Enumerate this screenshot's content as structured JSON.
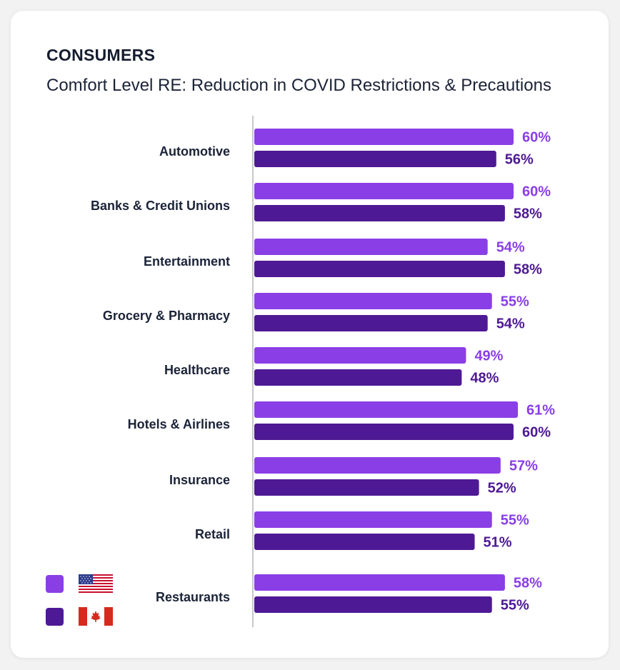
{
  "header": {
    "kicker": "CONSUMERS",
    "subtitle": "Comfort Level RE: Reduction in COVID Restrictions & Precautions"
  },
  "legend": {
    "items": [
      {
        "flag": "us-flag-icon",
        "color": "#8a3ee6"
      },
      {
        "flag": "canada-flag-icon",
        "color": "#4e1994"
      }
    ]
  },
  "chart_data": {
    "type": "bar",
    "orientation": "horizontal",
    "categories": [
      "Automotive",
      "Banks & Credit Unions",
      "Entertainment",
      "Grocery & Pharmacy",
      "Healthcare",
      "Hotels & Airlines",
      "Insurance",
      "Retail",
      "Restaurants"
    ],
    "series": [
      {
        "values": [
          60,
          60,
          54,
          55,
          49,
          61,
          57,
          55,
          58
        ],
        "color": "#8a3ee6"
      },
      {
        "values": [
          56,
          58,
          58,
          54,
          48,
          60,
          52,
          51,
          55
        ],
        "color": "#4e1994"
      }
    ],
    "value_suffix": "%",
    "xlim": [
      0,
      61
    ],
    "grid": false,
    "legend_position": "bottom-left"
  }
}
